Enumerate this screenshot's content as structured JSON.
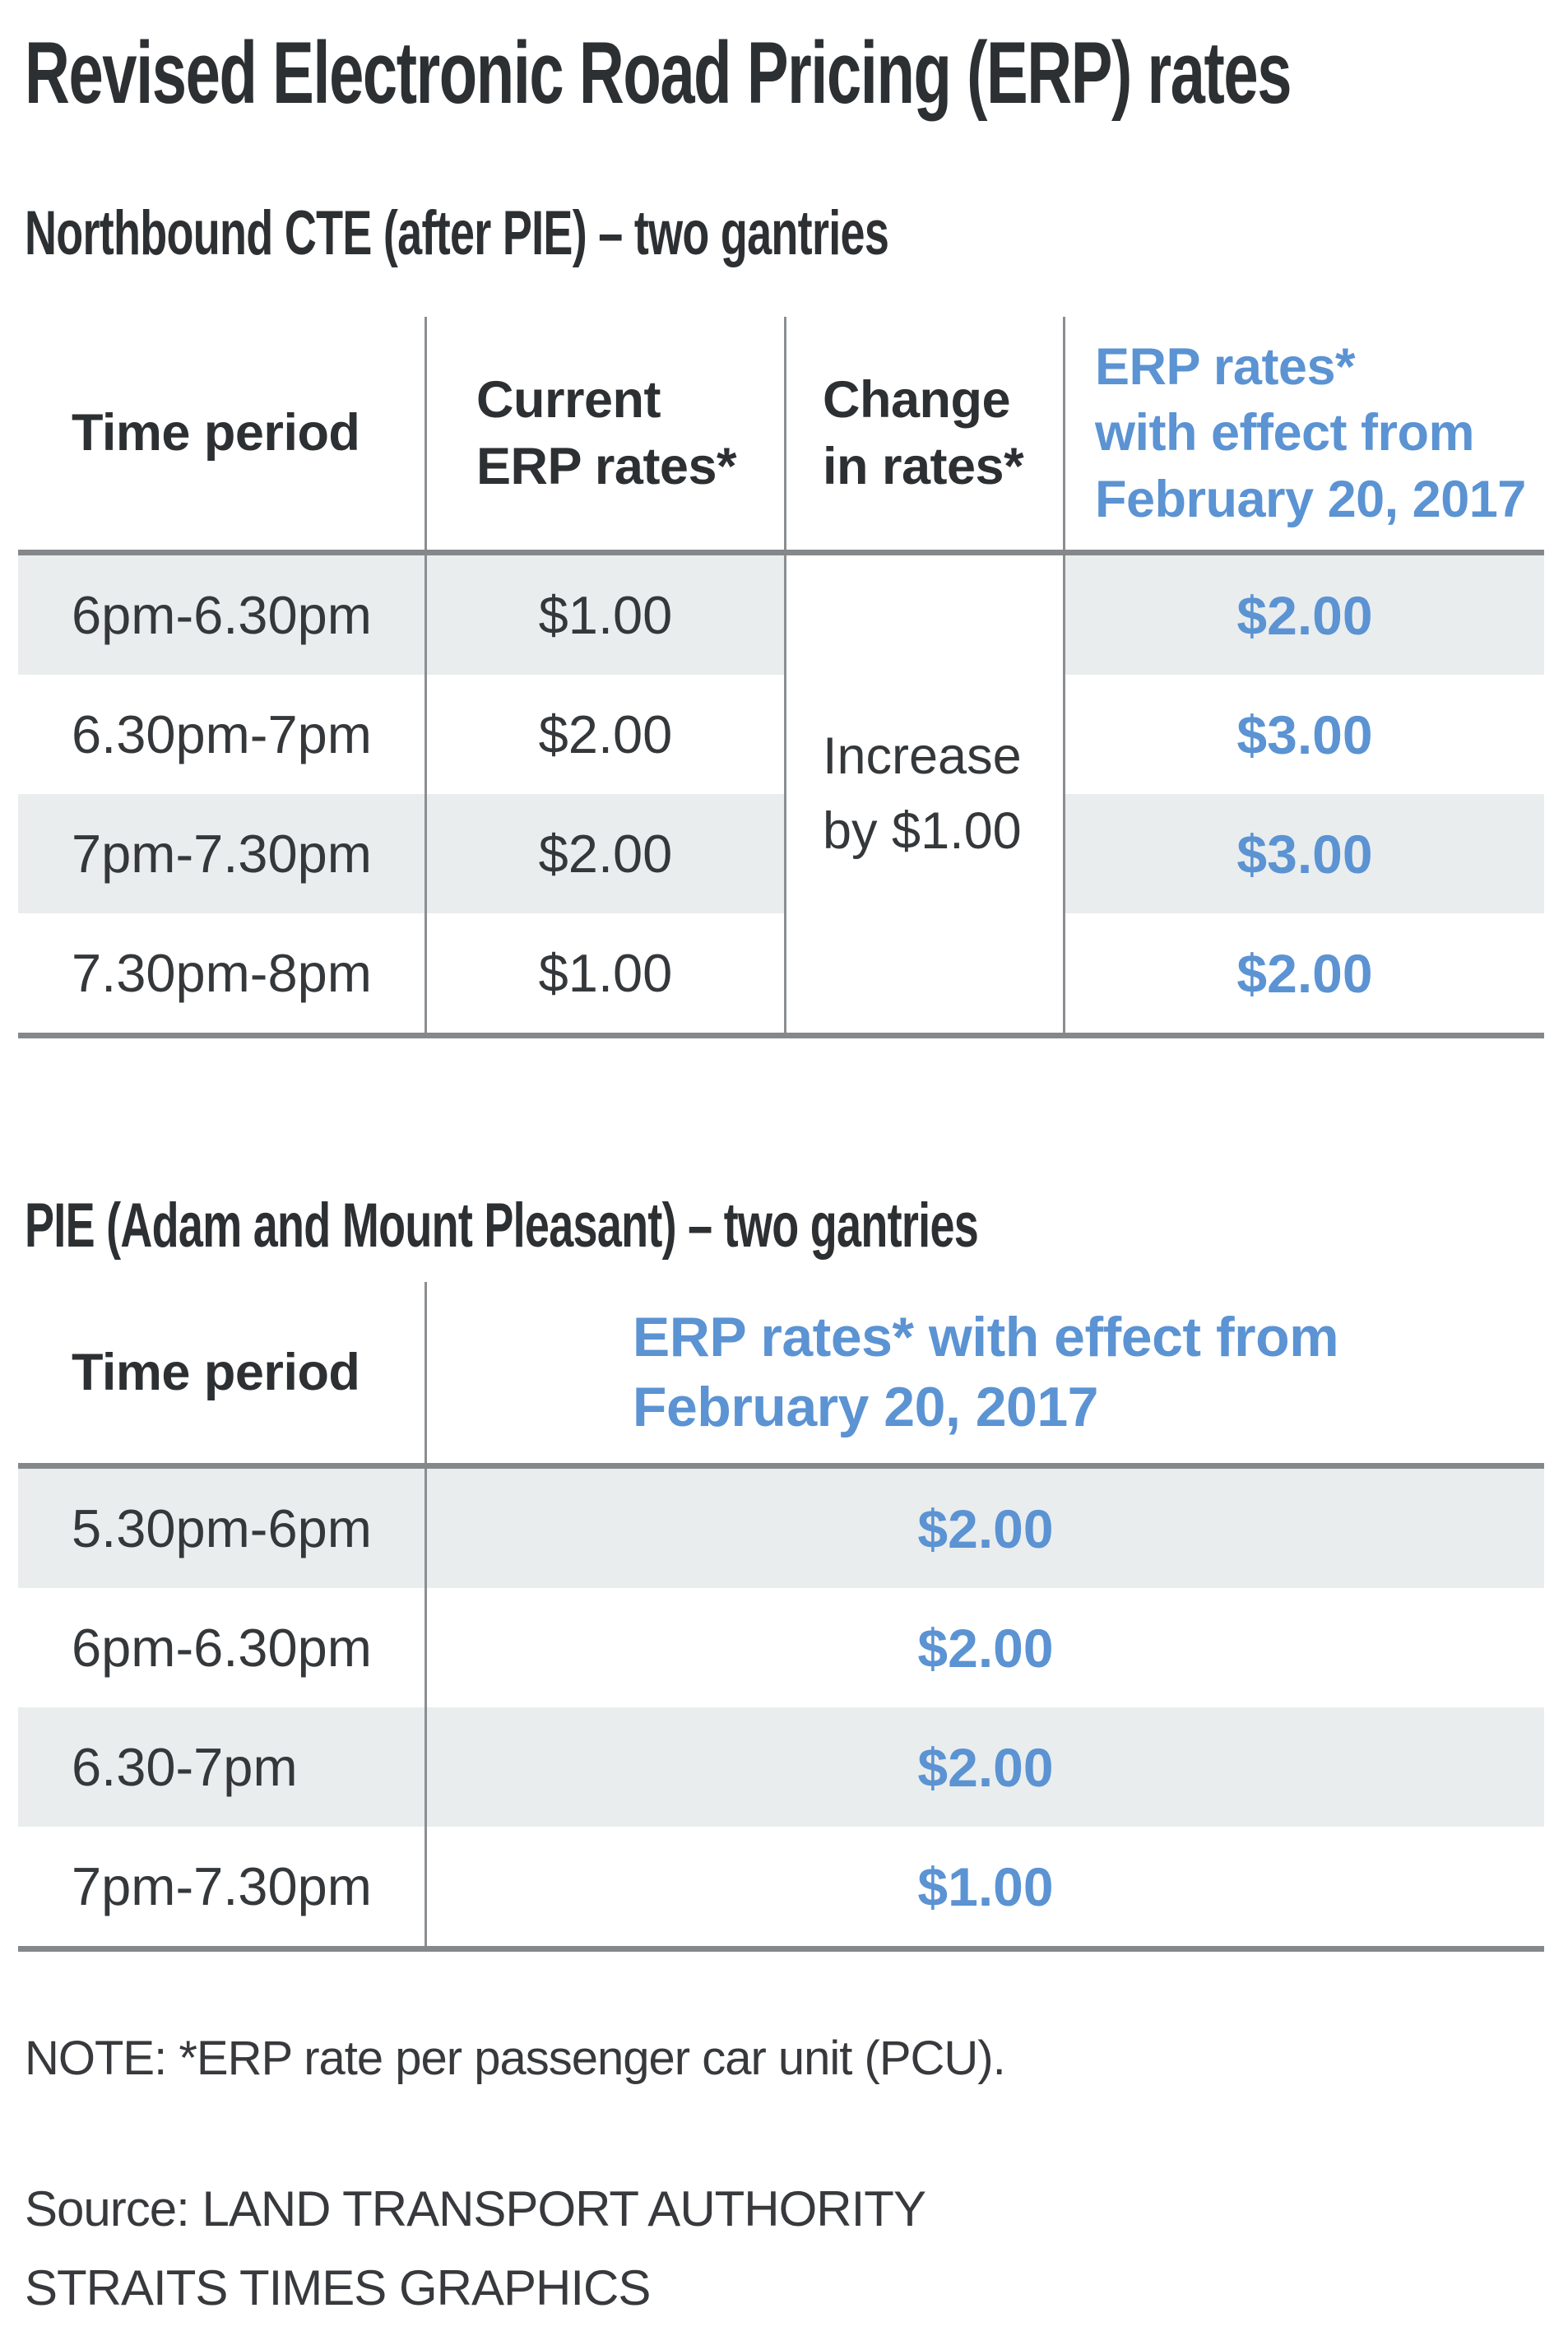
{
  "title": "Revised Electronic Road Pricing (ERP) rates",
  "colors": {
    "accent_blue": "#5b93d3",
    "dark_text": "#2d3033",
    "row_stripe": "#eaedee",
    "rule_gray": "#85888b"
  },
  "table1": {
    "heading": "Northbound CTE (after PIE) – two gantries",
    "header": {
      "time_period": "Time period",
      "current_line1": "Current",
      "current_line2": "ERP rates*",
      "change_line1": "Change",
      "change_line2": "in rates*",
      "new_line1": "ERP rates*",
      "new_line2": "with effect from",
      "new_line3": "February 20, 2017"
    },
    "change_cell": {
      "line1": "Increase",
      "line2": "by $1.00"
    },
    "rows": [
      {
        "time": "6pm-6.30pm",
        "current": "$1.00",
        "new": "$2.00"
      },
      {
        "time": "6.30pm-7pm",
        "current": "$2.00",
        "new": "$3.00"
      },
      {
        "time": "7pm-7.30pm",
        "current": "$2.00",
        "new": "$3.00"
      },
      {
        "time": "7.30pm-8pm",
        "current": "$1.00",
        "new": "$2.00"
      }
    ]
  },
  "table2": {
    "heading": "PIE (Adam and Mount Pleasant) – two gantries",
    "header": {
      "time_period": "Time period",
      "rates_line1": "ERP rates* with effect from",
      "rates_line2": "February 20, 2017"
    },
    "rows": [
      {
        "time": "5.30pm-6pm",
        "rate": "$2.00"
      },
      {
        "time": "6pm-6.30pm",
        "rate": "$2.00"
      },
      {
        "time": "6.30-7pm",
        "rate": "$2.00"
      },
      {
        "time": "7pm-7.30pm",
        "rate": "$1.00"
      }
    ]
  },
  "footer": {
    "note": "NOTE: *ERP rate per passenger car unit (PCU).",
    "source": "Source: LAND TRANSPORT AUTHORITY",
    "credit": "STRAITS TIMES GRAPHICS"
  },
  "chart_data": [
    {
      "type": "table",
      "title": "Northbound CTE (after PIE) – two gantries",
      "columns": [
        "Time period",
        "Current ERP rates*",
        "Change in rates*",
        "ERP rates* with effect from February 20, 2017"
      ],
      "rows": [
        [
          "6pm-6.30pm",
          "$1.00",
          "Increase by $1.00",
          "$2.00"
        ],
        [
          "6.30pm-7pm",
          "$2.00",
          "Increase by $1.00",
          "$3.00"
        ],
        [
          "7pm-7.30pm",
          "$2.00",
          "Increase by $1.00",
          "$3.00"
        ],
        [
          "7.30pm-8pm",
          "$1.00",
          "Increase by $1.00",
          "$2.00"
        ]
      ]
    },
    {
      "type": "table",
      "title": "PIE (Adam and Mount Pleasant) – two gantries",
      "columns": [
        "Time period",
        "ERP rates* with effect from February 20, 2017"
      ],
      "rows": [
        [
          "5.30pm-6pm",
          "$2.00"
        ],
        [
          "6pm-6.30pm",
          "$2.00"
        ],
        [
          "6.30-7pm",
          "$2.00"
        ],
        [
          "7pm-7.30pm",
          "$1.00"
        ]
      ]
    }
  ]
}
